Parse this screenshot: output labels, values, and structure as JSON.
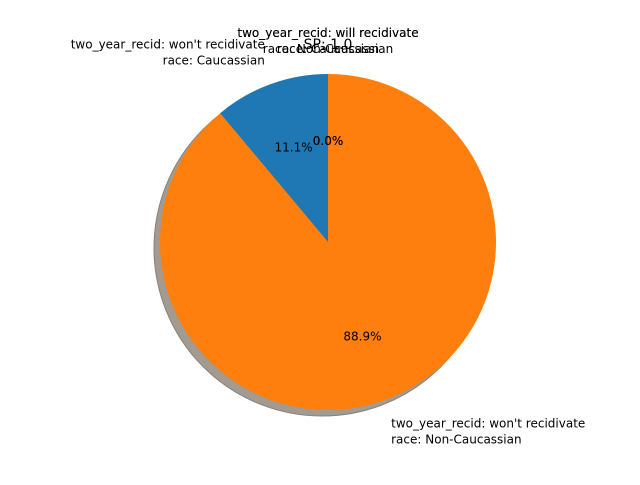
{
  "chart_data": {
    "type": "pie",
    "title": "SP: 1.0",
    "slices": [
      {
        "label_lines": [
          "two_year_recid: will recidivate",
          "race: Caucassian"
        ],
        "value": 0,
        "pct_label": "0.0%",
        "color": "#1f77b4"
      },
      {
        "label_lines": [
          "two_year_recid: will recidivate",
          "race: Non-Caucassian"
        ],
        "value": 0,
        "pct_label": "0.0%",
        "color": "#1f77b4"
      },
      {
        "label_lines": [
          "two_year_recid: won't recidivate",
          "race: Caucassian"
        ],
        "value": 11.1,
        "pct_label": "11.1%",
        "color": "#1f77b4"
      },
      {
        "label_lines": [
          "two_year_recid: won't recidivate",
          "race: Non-Caucassian"
        ],
        "value": 88.9,
        "pct_label": "88.9%",
        "color": "#ff7f0e"
      }
    ],
    "start_angle_deg": 90,
    "direction": "counterclockwise",
    "shadow": true,
    "legend": "none"
  }
}
